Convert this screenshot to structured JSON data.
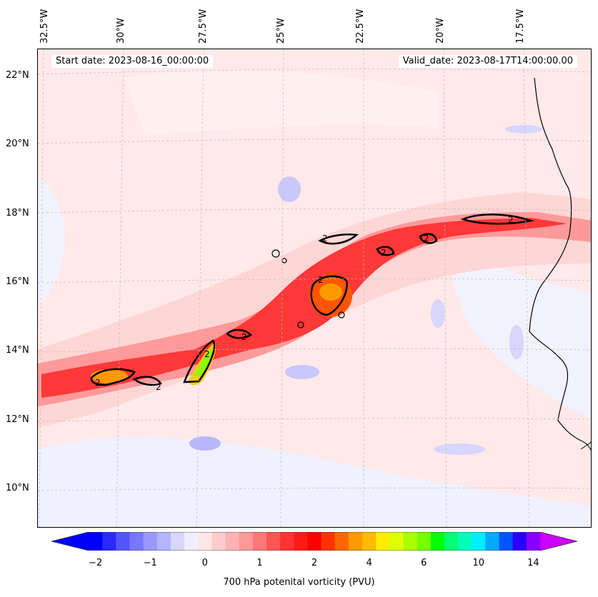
{
  "header": {
    "start_date": "Start date: 2023-08-16_00:00:00",
    "valid_date": "Valid_date: 2023-08-17T14:00:00.00"
  },
  "axes": {
    "longitudes": [
      "32.5°W",
      "30°W",
      "27.5°W",
      "25°W",
      "22.5°W",
      "20°W",
      "17.5°W"
    ],
    "latitudes": [
      "22°N",
      "20°N",
      "18°N",
      "16°N",
      "14°N",
      "12°N",
      "10°N"
    ]
  },
  "contour": {
    "level_label": "2"
  },
  "colorbar": {
    "label": "700 hPa potenital vorticity (PVU)",
    "ticks": [
      "−2",
      "−1",
      "0",
      "1",
      "2",
      "4",
      "6",
      "10",
      "14"
    ],
    "colors": [
      "#0000ff",
      "#2a2aff",
      "#5555ff",
      "#7777ff",
      "#9999ff",
      "#b4b4ff",
      "#d6d6ff",
      "#eeeeff",
      "#ffe6e6",
      "#ffcccc",
      "#ffb3b3",
      "#ff9999",
      "#ff7777",
      "#ff5555",
      "#ff3333",
      "#ff1a1a",
      "#ff0000",
      "#ff3300",
      "#ff6600",
      "#ff9900",
      "#ffbb00",
      "#ffee00",
      "#ddff00",
      "#aaff00",
      "#77ff00",
      "#00ff00",
      "#00ff77",
      "#00ffbb",
      "#00eeff",
      "#00aaff",
      "#0055ff",
      "#2a00ff",
      "#8800ff"
    ],
    "under_color": "#0000ff",
    "over_color": "#cc00ff"
  },
  "colors": {
    "background_field": "#fff0f0",
    "coast": "#000000",
    "grid": "#bbbbbb"
  }
}
